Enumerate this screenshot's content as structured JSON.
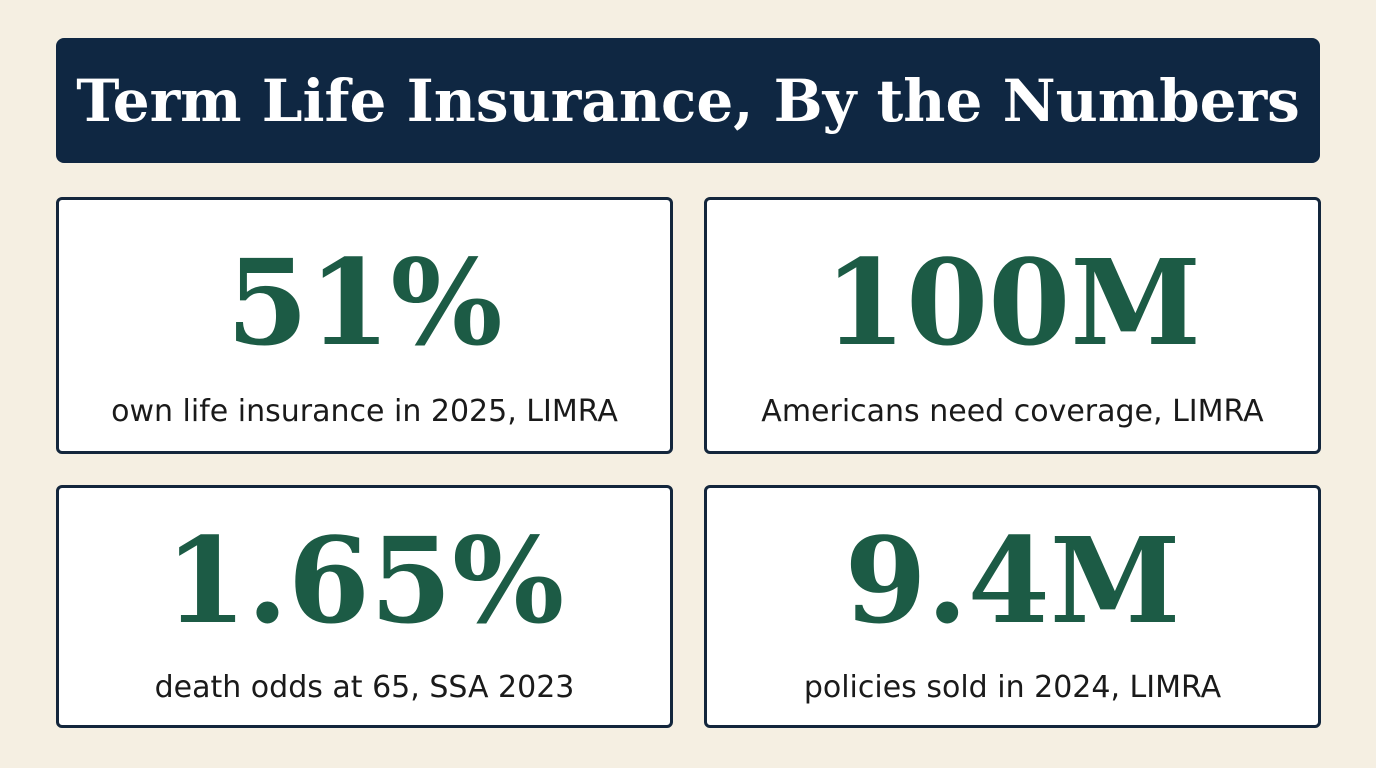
{
  "header": {
    "title": "Term Life Insurance, By the Numbers"
  },
  "stats": [
    {
      "value": "51%",
      "label": "own life insurance in 2025, LIMRA"
    },
    {
      "value": "100M",
      "label": "Americans need coverage, LIMRA"
    },
    {
      "value": "1.65%",
      "label": "death odds at 65, SSA 2023"
    },
    {
      "value": "9.4M",
      "label": "policies sold in 2024, LIMRA"
    }
  ],
  "colors": {
    "background": "#f5efe2",
    "banner": "#0f2742",
    "stat_value": "#1c5b45",
    "card_border": "#13263c"
  }
}
